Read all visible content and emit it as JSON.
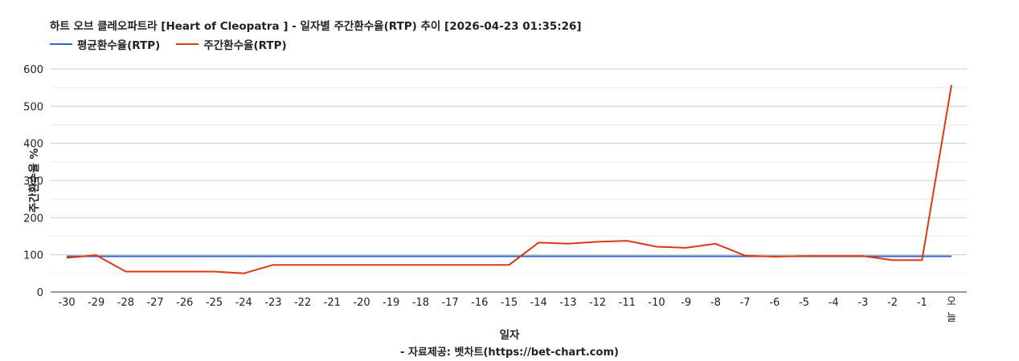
{
  "chart_data": {
    "type": "line",
    "title": "하트 오브 클레오파트라 [Heart of Cleopatra ] - 일자별 주간환수율(RTP) 추이 [2026-04-23 01:35:26]",
    "xlabel": "일자",
    "ylabel": "주간환수율 %",
    "source": "- 자료제공: 벳차트(https://bet-chart.com)",
    "ylim": [
      0,
      600
    ],
    "yticks": [
      "0",
      "100",
      "200",
      "300",
      "400",
      "500",
      "600"
    ],
    "grid": true,
    "legend_position": "top-left",
    "categories": [
      "-30",
      "-29",
      "-28",
      "-27",
      "-26",
      "-25",
      "-24",
      "-23",
      "-22",
      "-21",
      "-20",
      "-19",
      "-18",
      "-17",
      "-16",
      "-15",
      "-14",
      "-13",
      "-12",
      "-11",
      "-10",
      "-9",
      "-8",
      "-7",
      "-6",
      "-5",
      "-4",
      "-3",
      "-2",
      "-1",
      "오늘"
    ],
    "series": [
      {
        "name": "평균환수율(RTP)",
        "color": "#3366cc",
        "values": [
          96,
          96,
          96,
          96,
          96,
          96,
          96,
          96,
          96,
          96,
          96,
          96,
          96,
          96,
          96,
          96,
          96,
          96,
          96,
          96,
          96,
          96,
          96,
          96,
          96,
          96,
          96,
          96,
          96,
          96,
          96
        ]
      },
      {
        "name": "주간환수율(RTP)",
        "color": "#dc3912",
        "values": [
          92,
          99,
          55,
          55,
          55,
          55,
          50,
          73,
          73,
          73,
          73,
          73,
          73,
          73,
          73,
          73,
          133,
          130,
          135,
          138,
          122,
          119,
          130,
          98,
          95,
          97,
          97,
          97,
          86,
          86,
          557
        ]
      }
    ]
  }
}
